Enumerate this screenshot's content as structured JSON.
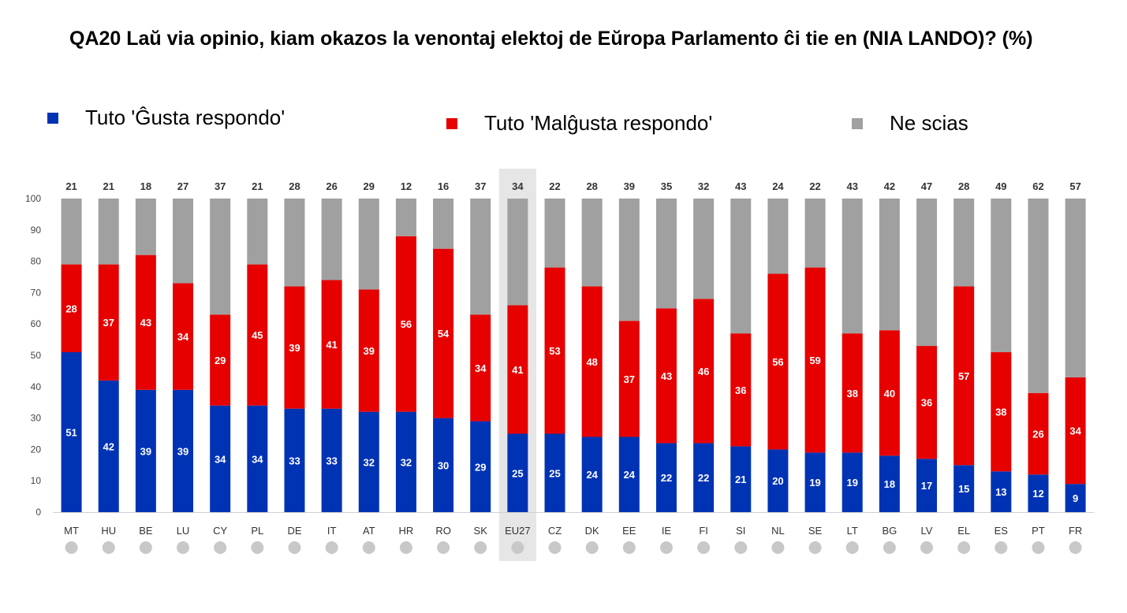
{
  "chart_data": {
    "type": "stacked-bar",
    "title": "QA20 Laŭ via opinio, kiam okazos la venontaj elektoj de Eŭropa Parlamento ĉi tie en (NIA LANDO)? (%)",
    "ylim": [
      0,
      100
    ],
    "yticks": [
      0,
      10,
      20,
      30,
      40,
      50,
      60,
      70,
      80,
      90,
      100
    ],
    "categories": [
      "MT",
      "HU",
      "BE",
      "LU",
      "CY",
      "PL",
      "DE",
      "IT",
      "AT",
      "HR",
      "RO",
      "SK",
      "EU27",
      "CZ",
      "DK",
      "EE",
      "IE",
      "FI",
      "SI",
      "NL",
      "SE",
      "LT",
      "BG",
      "LV",
      "EL",
      "ES",
      "PT",
      "FR"
    ],
    "highlight": "EU27",
    "series": [
      {
        "name": "Tuto 'Ĝusta respondo'",
        "color": "#0033B4",
        "values": [
          51,
          42,
          39,
          39,
          34,
          34,
          33,
          33,
          32,
          32,
          30,
          29,
          25,
          25,
          24,
          24,
          22,
          22,
          21,
          20,
          19,
          19,
          18,
          17,
          15,
          13,
          12,
          9
        ]
      },
      {
        "name": "Tuto 'Malĝusta respondo'",
        "color": "#E60000",
        "values": [
          28,
          37,
          43,
          34,
          29,
          45,
          39,
          41,
          39,
          56,
          54,
          34,
          41,
          53,
          48,
          37,
          43,
          46,
          36,
          56,
          59,
          38,
          40,
          36,
          57,
          38,
          26,
          34
        ]
      },
      {
        "name": "Ne scias",
        "color": "#A0A0A0",
        "values": [
          21,
          21,
          18,
          27,
          37,
          21,
          28,
          26,
          29,
          12,
          16,
          37,
          34,
          22,
          28,
          39,
          35,
          32,
          43,
          24,
          22,
          43,
          42,
          47,
          28,
          49,
          62,
          57
        ]
      }
    ]
  }
}
